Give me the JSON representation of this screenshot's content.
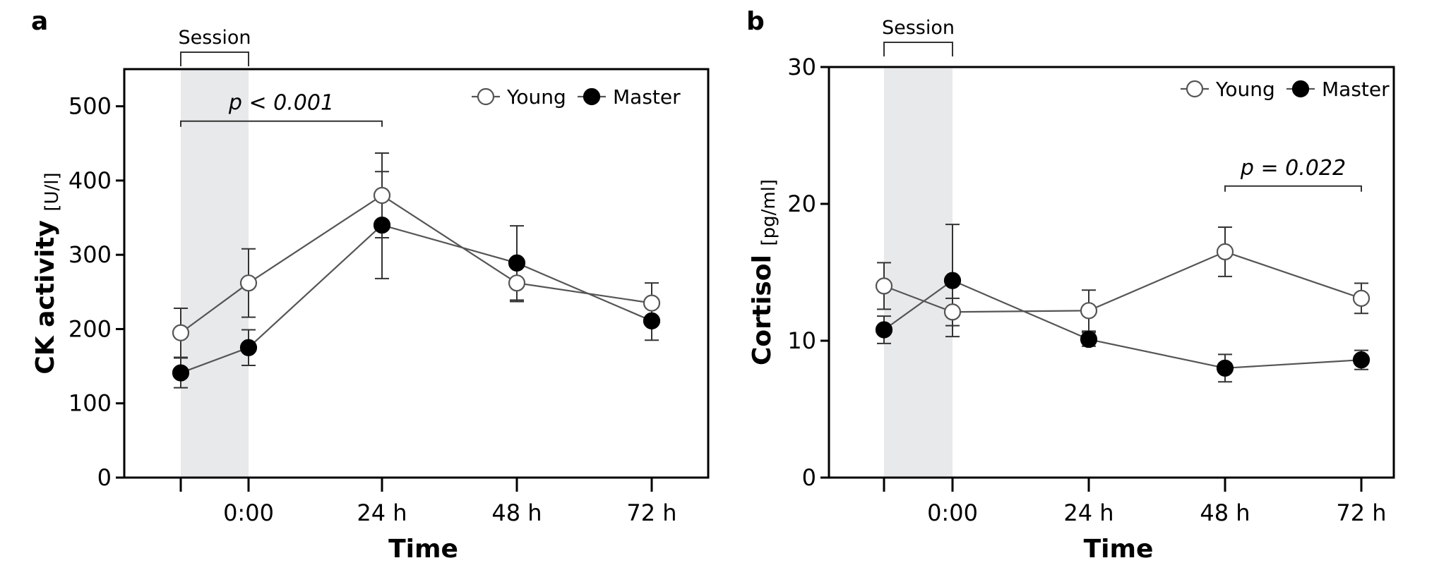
{
  "chart_data": [
    {
      "type": "line",
      "panel_label": "a",
      "xlabel": "Time",
      "ylabel": "CK activity",
      "ylabel_unit": "[U/l]",
      "categories": [
        "",
        "0:00",
        "24 h",
        "48 h",
        "72 h"
      ],
      "yticks": [
        0,
        100,
        200,
        300,
        400,
        500
      ],
      "ylim": [
        0,
        550
      ],
      "shaded_region": {
        "label": "Session",
        "from_index": 0,
        "to_index": 1,
        "color": "#e8e9eb"
      },
      "significance": {
        "text": "p < 0.001",
        "from_index": 0,
        "to_index": 2,
        "y": 480
      },
      "legend_position": "top-right",
      "series": [
        {
          "name": "Young",
          "marker": "open-circle",
          "values": [
            195,
            262,
            380,
            262,
            235
          ],
          "err": [
            33,
            46,
            57,
            25,
            27
          ]
        },
        {
          "name": "Master",
          "marker": "filled-circle",
          "values": [
            141,
            175,
            340,
            289,
            211
          ],
          "err": [
            20,
            24,
            72,
            50,
            26
          ]
        }
      ]
    },
    {
      "type": "line",
      "panel_label": "b",
      "xlabel": "Time",
      "ylabel": "Cortisol",
      "ylabel_unit": "[pg/ml]",
      "categories": [
        "",
        "0:00",
        "24 h",
        "48 h",
        "72 h"
      ],
      "yticks": [
        0,
        10,
        20,
        30
      ],
      "ylim": [
        0,
        30
      ],
      "shaded_region": {
        "label": "Session",
        "from_index": 0,
        "to_index": 1,
        "color": "#e8e9eb"
      },
      "significance": {
        "text": "p = 0.022",
        "from_index": 3,
        "to_index": 4,
        "y": 21.3
      },
      "legend_position": "top-right",
      "series": [
        {
          "name": "Young",
          "marker": "open-circle",
          "values": [
            14.0,
            12.1,
            12.2,
            16.5,
            13.1
          ],
          "err": [
            1.7,
            1.0,
            1.5,
            1.8,
            1.1
          ]
        },
        {
          "name": "Master",
          "marker": "filled-circle",
          "values": [
            10.8,
            14.4,
            10.1,
            8.0,
            8.6
          ],
          "err": [
            1.0,
            4.1,
            0.5,
            1.0,
            0.7
          ]
        }
      ]
    }
  ]
}
